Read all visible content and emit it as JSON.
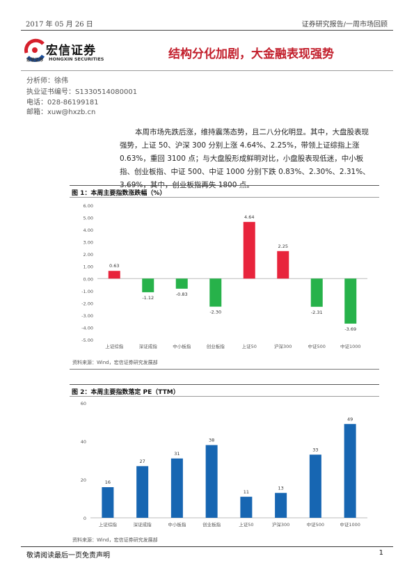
{
  "header": {
    "date": "2017 年 05 月 26 日",
    "series": "证券研究报告/一周市场回顾",
    "company_name": "宏信证券",
    "company_sub": "宏信证券",
    "company_en": "HONGXIN SECURITIES",
    "title": "结构分化加剧，大金融表现强势"
  },
  "analyst": {
    "name": "分析师：徐伟",
    "license": "执业证书编号：S1330514080001",
    "phone": "电话：028-86199181",
    "email": "邮箱：xuw@hxzb.cn"
  },
  "summary": "本周市场先跌后涨，维持震荡态势，且二八分化明显。其中，大盘股表现强势，上证 50、沪深 300 分别上涨 4.64%、2.25%，带领上证综指上涨 0.63%，重回 3100 点；与大盘股形成鲜明对比，小盘股表现低迷，中小板指、创业板指、中证 500、中证 1000 分别下跌 0.83%、2.30%、2.31%、3.69%，其中，创业板指再失 1800 点。",
  "figure1": {
    "caption": "图 1：本周主要指数涨跌幅（%）",
    "source": "资料来源：Wind，宏信证券研究发展部"
  },
  "figure2": {
    "caption": "图 2：本周主要指数落定 PE（TTM）",
    "source": "资料来源：Wind，宏信证券研究发展部"
  },
  "chart_data": [
    {
      "type": "bar",
      "title": "本周主要指数涨跌幅（%）",
      "categories": [
        "上证综指",
        "深证成指",
        "中小板指",
        "创业板指",
        "上证50",
        "沪深300",
        "中证500",
        "中证1000"
      ],
      "values": [
        0.63,
        -1.12,
        -0.83,
        -2.3,
        4.64,
        2.25,
        -2.31,
        -3.69
      ],
      "value_labels": [
        "0.63",
        "-1.12",
        "-0.83",
        "-2.30",
        "4.64",
        "2.25",
        "-2.31",
        "-3.69"
      ],
      "ylim": [
        -5,
        6
      ],
      "yticks": [
        "6.00",
        "5.00",
        "4.00",
        "3.00",
        "2.00",
        "1.00",
        "0.00",
        "-1.00",
        "-2.00",
        "-3.00",
        "-4.00",
        "-5.00"
      ],
      "colors": {
        "positive": "#e8243c",
        "negative": "#27b24a"
      },
      "grid": false,
      "legend": "none"
    },
    {
      "type": "bar",
      "title": "本周主要指数落定 PE（TTM）",
      "categories": [
        "上证综指",
        "深证成指",
        "中小板指",
        "创业板指",
        "上证50",
        "沪深300",
        "中证500",
        "中证1000"
      ],
      "values": [
        16,
        27,
        31,
        38,
        11,
        13,
        33,
        49
      ],
      "value_labels": [
        "16",
        "27",
        "31",
        "38",
        "11",
        "13",
        "33",
        "49"
      ],
      "ylim": [
        0,
        60
      ],
      "yticks": [
        "60",
        "40",
        "20",
        "0"
      ],
      "colors": {
        "bar": "#1766b2"
      },
      "grid": false,
      "legend": "none"
    }
  ],
  "footer": {
    "note": "敬请阅读最后一页免责声明",
    "page": "1"
  },
  "colors": {
    "title": "#c21e2b",
    "logo_red": "#d6202c",
    "logo_blue": "#1a4e9c"
  }
}
